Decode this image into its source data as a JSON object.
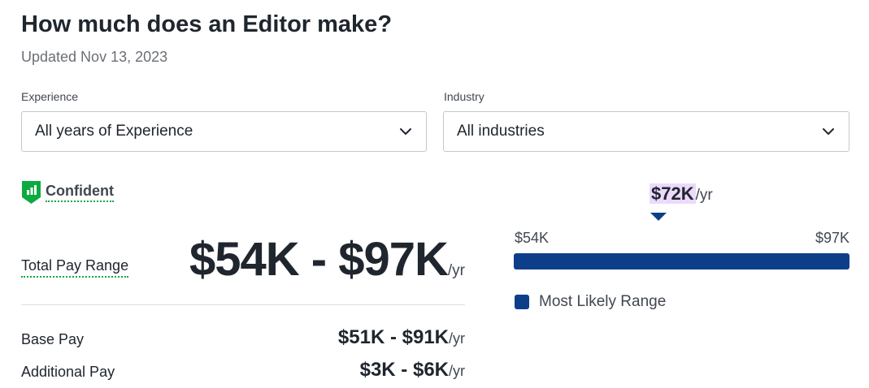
{
  "header": {
    "title": "How much does an Editor make?",
    "updated": "Updated Nov 13, 2023"
  },
  "filters": {
    "experience": {
      "label": "Experience",
      "value": "All years of Experience",
      "icon": "chevron-down-icon"
    },
    "industry": {
      "label": "Industry",
      "value": "All industries",
      "icon": "chevron-down-icon"
    }
  },
  "confidence": {
    "label": "Confident",
    "icon": "bar-chart-shield-icon"
  },
  "total_pay": {
    "label": "Total Pay Range",
    "range": "$54K - $97K",
    "per": "/yr"
  },
  "base_pay": {
    "label": "Base Pay",
    "range": "$51K - $91K",
    "per": "/yr"
  },
  "additional_pay": {
    "label": "Additional Pay",
    "range": "$3K - $6K",
    "per": "/yr"
  },
  "range_bar": {
    "median": "$72K",
    "median_per": "/yr",
    "low": "$54K",
    "high": "$97K",
    "median_position_fraction": 0.43,
    "legend_label": "Most Likely Range"
  },
  "colors": {
    "bar": "#0d3e8a",
    "median_highlight": "#ecd9fb",
    "confident_green": "#0caa41",
    "text_primary": "#20262e"
  }
}
